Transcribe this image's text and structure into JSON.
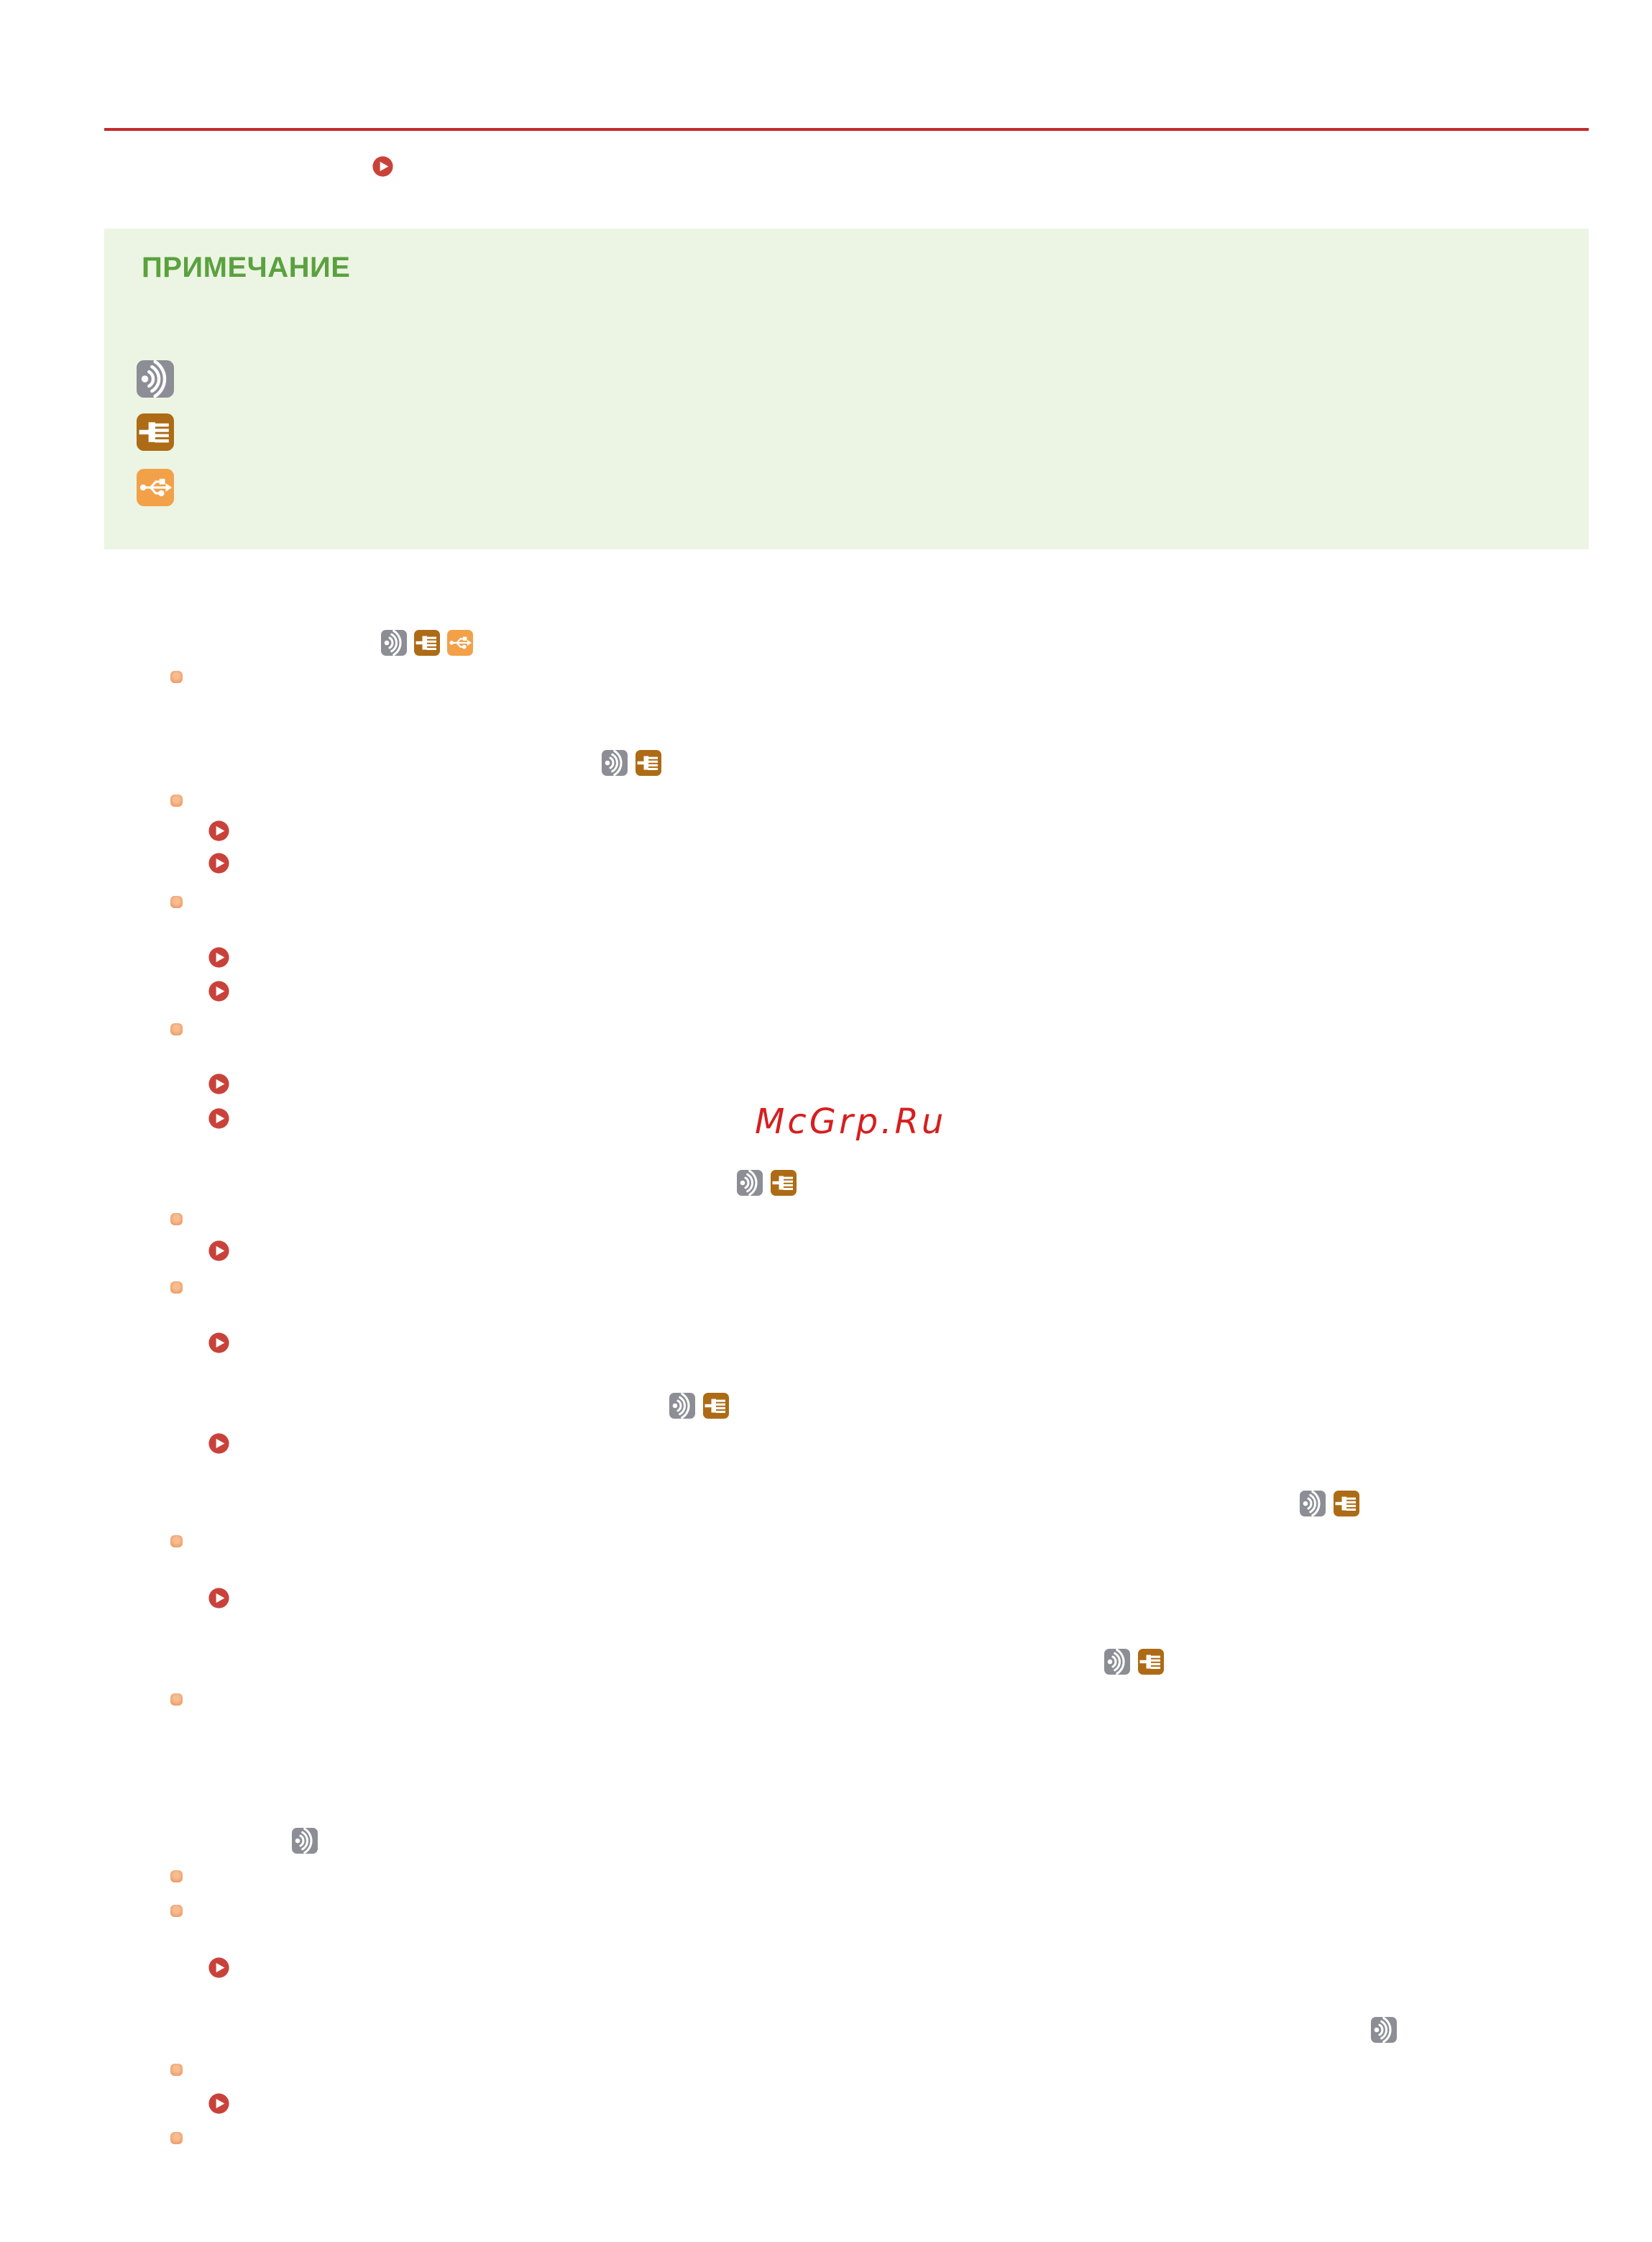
{
  "note": {
    "label": "ПРИМЕЧАНИЕ",
    "label_color": "#5ba140",
    "background": "#ecf5e3",
    "icons": [
      "wireless-lan-icon",
      "wired-lan-icon",
      "usb-icon"
    ]
  },
  "watermark": {
    "text": "McGrp.Ru",
    "color": "#d71e1e"
  },
  "colors": {
    "header_rule": "#c32b2e",
    "play_icon": "#c9423a",
    "bullet_light": "#f7bd92",
    "bullet_dark": "#ea8f55",
    "wireless_icon_bg": "#8d8d95",
    "wired_icon_bg": "#ad6b15",
    "usb_icon_bg": "#f2a149"
  },
  "icon_legend": {
    "wireless": "wireless-lan-icon",
    "wired": "wired-lan-icon",
    "usb": "usb-icon",
    "play": "play-link-icon"
  }
}
